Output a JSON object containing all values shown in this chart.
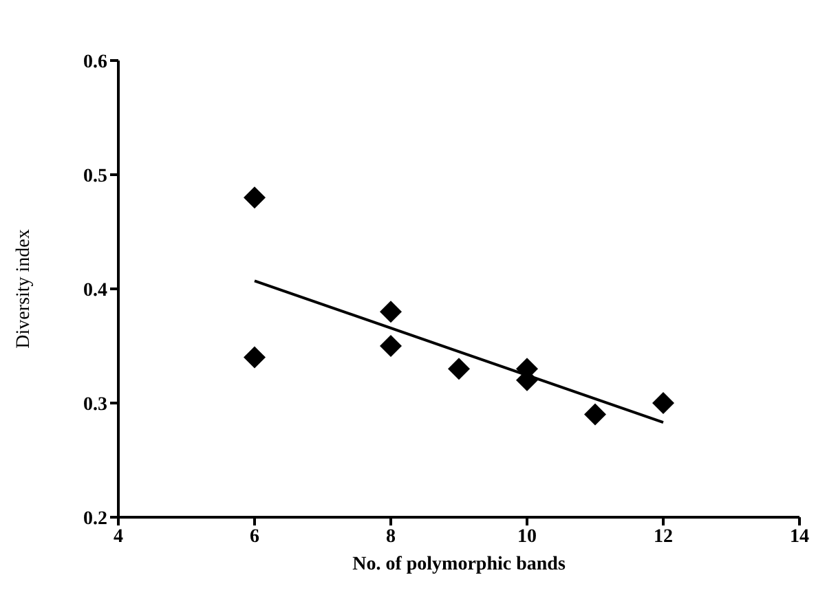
{
  "chart_data": {
    "type": "scatter",
    "xlabel": "No. of polymorphic bands",
    "ylabel": "Diversity index",
    "xlim": [
      4,
      14
    ],
    "xticks": [
      4,
      6,
      8,
      10,
      12,
      14
    ],
    "ylim": [
      0.2,
      0.6
    ],
    "yticks": [
      0.2,
      0.3,
      0.4,
      0.5,
      0.6
    ],
    "grid": false,
    "legend": false,
    "series": [
      {
        "type": "scatter",
        "color": "#000000",
        "marker": "diamond",
        "x": [
          6,
          6,
          8,
          8,
          9,
          10,
          10,
          11,
          12
        ],
        "values": [
          0.48,
          0.34,
          0.38,
          0.35,
          0.33,
          0.33,
          0.32,
          0.29,
          0.3
        ]
      },
      {
        "type": "line",
        "color": "#000000",
        "marker": "none",
        "line_style": "solid",
        "x": [
          6,
          12
        ],
        "values": [
          0.407,
          0.283
        ]
      }
    ]
  }
}
